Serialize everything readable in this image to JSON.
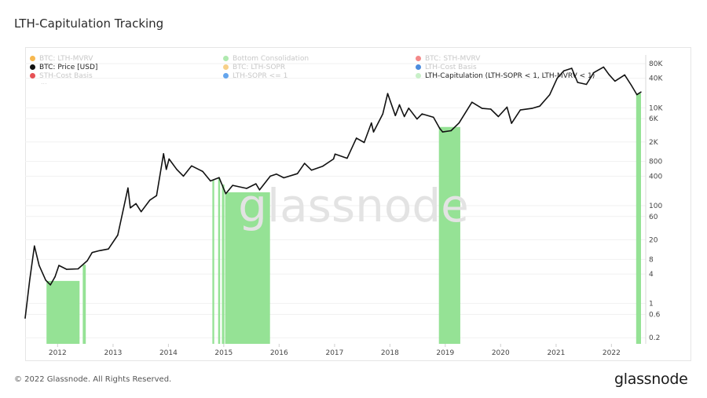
{
  "page": {
    "title": "LTH-Capitulation Tracking",
    "copyright": "© 2022 Glassnode. All Rights Reserved.",
    "brand": "glassnode",
    "watermark": "glassnode"
  },
  "legend": {
    "items": [
      {
        "label": "BTC: LTH-MVRV",
        "color": "#f5a623",
        "active": false
      },
      {
        "label": "Bottom Consolidation",
        "color": "#9be39b",
        "active": false
      },
      {
        "label": "BTC: STH-MVRV",
        "color": "#f06b6b",
        "active": false
      },
      {
        "label": "BTC: Price [USD]",
        "color": "#111111",
        "active": true
      },
      {
        "label": "BTC: LTH-SOPR",
        "color": "#f5c46a",
        "active": false
      },
      {
        "label": "LTH-Cost Basis",
        "color": "#1f6fd6",
        "active": false
      },
      {
        "label": "STH-Cost Basis",
        "color": "#e0262b",
        "active": false
      },
      {
        "label": "LTH-SOPR <= 1",
        "color": "#3d8fe8",
        "active": false
      },
      {
        "label": "LTH-Capitulation (LTH-SOPR < 1, LTH-MVRV < 1)",
        "color": "#c8f0c8",
        "active": true
      }
    ],
    "more": "..."
  },
  "chart_data": {
    "type": "line",
    "title": "LTH-Capitulation Tracking",
    "xlabel": "",
    "ylabel": "",
    "y_scale": "log",
    "ylim": [
      0.15,
      120000
    ],
    "xlim": [
      "2011-06-01",
      "2022-07-15"
    ],
    "grid": true,
    "legend_position": "top",
    "x_ticks": [
      "2012",
      "2013",
      "2014",
      "2015",
      "2016",
      "2017",
      "2018",
      "2019",
      "2020",
      "2021",
      "2022"
    ],
    "y_ticks": [
      0.2,
      0.6,
      1,
      4,
      8,
      20,
      60,
      100,
      400,
      800,
      2000,
      6000,
      10000,
      40000,
      80000
    ],
    "y_tick_labels": [
      "0.2",
      "0.6",
      "1",
      "4",
      "8",
      "20",
      "60",
      "100",
      "400",
      "800",
      "2K",
      "6K",
      "10K",
      "40K",
      "80K"
    ],
    "series": [
      {
        "name": "BTC: Price [USD]",
        "color": "#111111",
        "points": [
          [
            "2011-06-01",
            0.5
          ],
          [
            "2011-07-01",
            3
          ],
          [
            "2011-08-01",
            15
          ],
          [
            "2011-09-01",
            6
          ],
          [
            "2011-10-15",
            3
          ],
          [
            "2011-11-15",
            2.4
          ],
          [
            "2011-12-15",
            3.5
          ],
          [
            "2012-01-10",
            6
          ],
          [
            "2012-03-01",
            5
          ],
          [
            "2012-05-15",
            5.1
          ],
          [
            "2012-07-15",
            7.5
          ],
          [
            "2012-08-16",
            11
          ],
          [
            "2012-10-01",
            12
          ],
          [
            "2012-12-01",
            13
          ],
          [
            "2013-02-01",
            25
          ],
          [
            "2013-04-09",
            230
          ],
          [
            "2013-04-25",
            90
          ],
          [
            "2013-06-01",
            110
          ],
          [
            "2013-07-05",
            75
          ],
          [
            "2013-09-01",
            130
          ],
          [
            "2013-10-15",
            160
          ],
          [
            "2013-11-30",
            1150
          ],
          [
            "2013-12-18",
            550
          ],
          [
            "2014-01-05",
            900
          ],
          [
            "2014-02-25",
            550
          ],
          [
            "2014-04-10",
            400
          ],
          [
            "2014-06-03",
            650
          ],
          [
            "2014-08-15",
            500
          ],
          [
            "2014-10-05",
            320
          ],
          [
            "2014-12-01",
            375
          ],
          [
            "2015-01-14",
            175
          ],
          [
            "2015-03-01",
            260
          ],
          [
            "2015-06-01",
            225
          ],
          [
            "2015-08-01",
            280
          ],
          [
            "2015-08-25",
            210
          ],
          [
            "2015-11-04",
            400
          ],
          [
            "2015-12-15",
            440
          ],
          [
            "2016-02-01",
            370
          ],
          [
            "2016-05-01",
            450
          ],
          [
            "2016-06-17",
            730
          ],
          [
            "2016-08-02",
            530
          ],
          [
            "2016-10-15",
            640
          ],
          [
            "2016-12-25",
            900
          ],
          [
            "2017-01-04",
            1130
          ],
          [
            "2017-03-25",
            930
          ],
          [
            "2017-05-25",
            2400
          ],
          [
            "2017-07-15",
            1950
          ],
          [
            "2017-09-01",
            4900
          ],
          [
            "2017-09-15",
            3200
          ],
          [
            "2017-11-15",
            7500
          ],
          [
            "2017-12-17",
            19500
          ],
          [
            "2018-02-06",
            6900
          ],
          [
            "2018-03-05",
            11500
          ],
          [
            "2018-04-06",
            6600
          ],
          [
            "2018-05-05",
            9800
          ],
          [
            "2018-06-29",
            5900
          ],
          [
            "2018-08-01",
            7500
          ],
          [
            "2018-10-15",
            6400
          ],
          [
            "2018-11-25",
            3800
          ],
          [
            "2018-12-15",
            3200
          ],
          [
            "2019-02-08",
            3400
          ],
          [
            "2019-04-02",
            4900
          ],
          [
            "2019-06-26",
            13000
          ],
          [
            "2019-09-01",
            9700
          ],
          [
            "2019-10-28",
            9400
          ],
          [
            "2019-12-17",
            6600
          ],
          [
            "2020-02-12",
            10300
          ],
          [
            "2020-03-13",
            4800
          ],
          [
            "2020-05-10",
            9000
          ],
          [
            "2020-07-25",
            9700
          ],
          [
            "2020-09-15",
            10800
          ],
          [
            "2020-11-20",
            18500
          ],
          [
            "2021-01-08",
            40000
          ],
          [
            "2021-02-21",
            57000
          ],
          [
            "2021-04-14",
            64000
          ],
          [
            "2021-05-23",
            33000
          ],
          [
            "2021-07-20",
            30000
          ],
          [
            "2021-09-06",
            52000
          ],
          [
            "2021-11-10",
            68000
          ],
          [
            "2021-12-15",
            48000
          ],
          [
            "2022-01-24",
            35000
          ],
          [
            "2022-03-29",
            47000
          ],
          [
            "2022-05-12",
            29000
          ],
          [
            "2022-06-18",
            18500
          ],
          [
            "2022-07-15",
            21000
          ]
        ]
      },
      {
        "name": "LTH-Capitulation (LTH-SOPR < 1, LTH-MVRV < 1)",
        "color": "#8fe08f",
        "type": "band",
        "intervals": [
          [
            "2011-10-20",
            "2012-05-25"
          ],
          [
            "2012-06-15",
            "2012-07-05"
          ],
          [
            "2014-10-18",
            "2014-10-30"
          ],
          [
            "2014-11-25",
            "2014-12-08"
          ],
          [
            "2014-12-20",
            "2015-01-05"
          ],
          [
            "2015-01-10",
            "2015-11-02"
          ],
          [
            "2018-11-20",
            "2019-04-10"
          ],
          [
            "2022-06-13",
            "2022-07-15"
          ]
        ]
      }
    ]
  }
}
